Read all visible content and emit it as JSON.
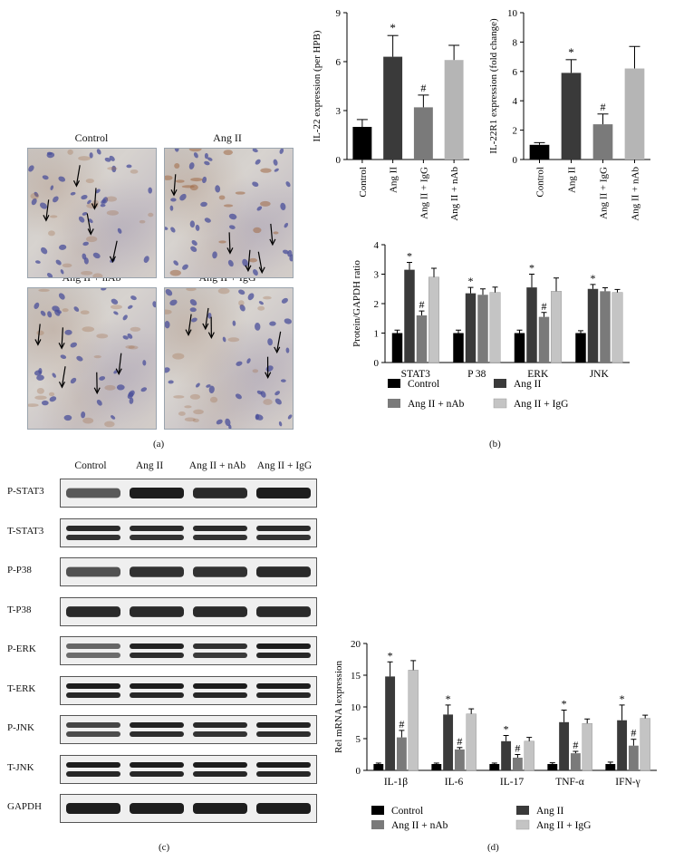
{
  "panel_labels": {
    "a": "(a)",
    "b": "(b)",
    "c": "(c)",
    "d": "(d)"
  },
  "micrographs": {
    "titles": [
      "Control",
      "Ang II",
      "Ang II + nAb",
      "Ang II + IgG"
    ]
  },
  "blots": {
    "columns": [
      "Control",
      "Ang II",
      "Ang II + nAb",
      "Ang II + IgG"
    ],
    "rows": [
      "P-STAT3",
      "T-STAT3",
      "P-P38",
      "T-P38",
      "P-ERK",
      "T-ERK",
      "P-JNK",
      "T-JNK",
      "GAPDH"
    ]
  },
  "chart_data": [
    {
      "type": "bar",
      "categories": [
        "Control",
        "Ang II",
        "Ang II + IgG",
        "Ang II + nAb"
      ],
      "values": [
        2.0,
        6.3,
        3.2,
        6.1
      ],
      "errors": [
        0.45,
        1.3,
        0.75,
        0.9
      ],
      "annotations": [
        "",
        "*",
        "#",
        ""
      ],
      "ylabel": "IL-22 expression (per HPB)",
      "ylim": [
        0,
        9
      ],
      "yticks": [
        0,
        3,
        6,
        9
      ],
      "colors": [
        "#000000",
        "#3a3a3a",
        "#7a7a7a",
        "#b5b5b5"
      ]
    },
    {
      "type": "bar",
      "categories": [
        "Control",
        "Ang II",
        "Ang II + IgG",
        "Ang II + nAb"
      ],
      "values": [
        1.0,
        5.9,
        2.4,
        6.2
      ],
      "errors": [
        0.15,
        0.9,
        0.7,
        1.5
      ],
      "annotations": [
        "",
        "*",
        "#",
        ""
      ],
      "ylabel": "IL-22R1 expression (fold change)",
      "ylim": [
        0,
        10
      ],
      "yticks": [
        0,
        2,
        4,
        6,
        8,
        10
      ],
      "colors": [
        "#000000",
        "#3a3a3a",
        "#7a7a7a",
        "#b5b5b5"
      ]
    },
    {
      "type": "bar",
      "categories": [
        "STAT3",
        "P 38",
        "ERK",
        "JNK"
      ],
      "series": [
        {
          "name": "Control",
          "values": [
            1.0,
            1.0,
            1.0,
            1.0
          ],
          "errors": [
            0.1,
            0.1,
            0.1,
            0.08
          ],
          "color": "#000000"
        },
        {
          "name": "Ang II",
          "values": [
            3.15,
            2.35,
            2.55,
            2.5
          ],
          "errors": [
            0.25,
            0.2,
            0.45,
            0.15
          ],
          "color": "#3a3a3a"
        },
        {
          "name": "Ang II + nAb",
          "values": [
            1.6,
            2.3,
            1.55,
            2.42
          ],
          "errors": [
            0.15,
            0.2,
            0.15,
            0.12
          ],
          "color": "#7a7a7a"
        },
        {
          "name": "Ang II + IgG",
          "values": [
            2.9,
            2.38,
            2.42,
            2.38
          ],
          "errors": [
            0.3,
            0.18,
            0.45,
            0.1
          ],
          "color": "#c4c4c4"
        }
      ],
      "annotations": {
        "Ang II": [
          "*",
          "*",
          "*",
          "*"
        ],
        "Ang II + nAb": [
          "#",
          "",
          "#",
          ""
        ]
      },
      "ylabel": "Protein/GAPDH ratio",
      "ylim": [
        0,
        4
      ],
      "yticks": [
        0,
        1,
        2,
        3,
        4
      ],
      "legend": "bottom"
    },
    {
      "type": "bar",
      "categories": [
        "IL-1β",
        "IL-6",
        "IL-17",
        "TNF-α",
        "IFN-γ"
      ],
      "series": [
        {
          "name": "Control",
          "values": [
            1.0,
            1.0,
            1.0,
            1.0,
            1.0
          ],
          "errors": [
            0.15,
            0.15,
            0.15,
            0.2,
            0.3
          ],
          "color": "#000000"
        },
        {
          "name": "Ang II",
          "values": [
            14.8,
            8.8,
            4.6,
            7.6,
            7.9
          ],
          "errors": [
            2.3,
            1.5,
            0.9,
            1.9,
            2.4
          ],
          "color": "#3a3a3a"
        },
        {
          "name": "Ang II + nAb",
          "values": [
            5.2,
            3.3,
            2.0,
            2.7,
            3.9
          ],
          "errors": [
            1.1,
            0.3,
            0.5,
            0.3,
            1.0
          ],
          "color": "#7a7a7a"
        },
        {
          "name": "Ang II + IgG",
          "values": [
            15.8,
            8.9,
            4.6,
            7.4,
            8.2
          ],
          "errors": [
            1.5,
            0.8,
            0.6,
            0.7,
            0.5
          ],
          "color": "#c4c4c4"
        }
      ],
      "annotations": {
        "Ang II": [
          "*",
          "*",
          "*",
          "*",
          "*"
        ],
        "Ang II + nAb": [
          "#",
          "#",
          "#",
          "#",
          "#"
        ]
      },
      "ylabel": "Rel mRNA lexpression",
      "ylim": [
        0,
        20
      ],
      "yticks": [
        0,
        5,
        10,
        15,
        20
      ],
      "legend": "bottom"
    }
  ]
}
